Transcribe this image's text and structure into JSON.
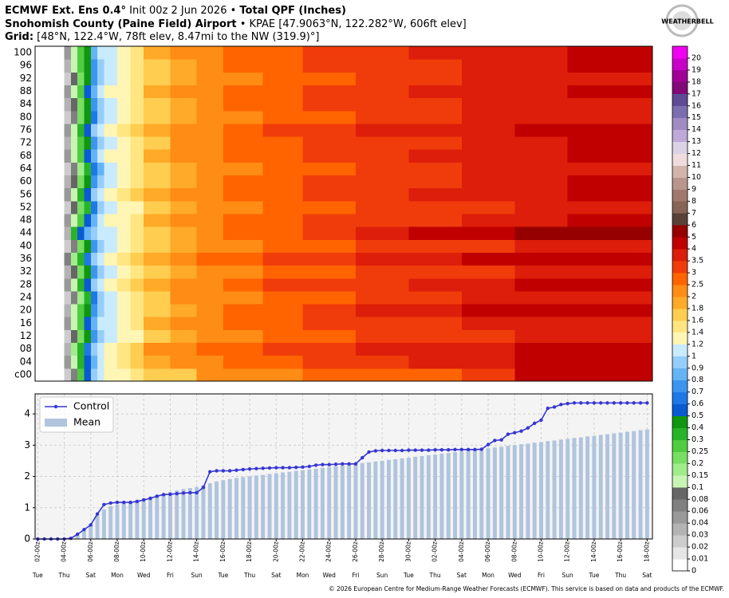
{
  "header": {
    "line1": [
      "ECMWF Ext. Ens 0.4°",
      " Init 00z 2 Jun 2026 • ",
      "Total QPF (Inches)"
    ],
    "line2": [
      "Snohomish County (Paine Field) Airport",
      " • KPAE [47.9063°N, 122.282°W, 606ft elev]"
    ],
    "line3": [
      "Grid:",
      " [48°N, 122.4°W, 78ft elev, 8.47mi to the NW (319.9)°]"
    ],
    "logo": "WEATHERBELL",
    "footer": "© 2026 European Centre for Medium-Range Weather Forecasts (ECMWF). This service is based on data and products of the ECMWF."
  },
  "chart_data": [
    {
      "type": "heatmap",
      "xlim": [
        -0.2,
        46.4
      ],
      "members": [
        "c00",
        "04",
        "08",
        "12",
        "16",
        "20",
        "24",
        "28",
        "32",
        "36",
        "40",
        "44",
        "48",
        "52",
        "56",
        "60",
        "64",
        "68",
        "72",
        "76",
        "80",
        "84",
        "88",
        "92",
        "96",
        "100"
      ],
      "x_edges": [
        0,
        2,
        2.5,
        3,
        3.5,
        4,
        4.5,
        5,
        6,
        7,
        8,
        10,
        12,
        14,
        17,
        20,
        24,
        28,
        32,
        36,
        40,
        46.4
      ],
      "values": [
        [
          0,
          0.02,
          0.06,
          0.25,
          0.5,
          0.9,
          1.15,
          1.2,
          1.3,
          1.45,
          1.6,
          1.75,
          2.2,
          2.3,
          2.4,
          2.8,
          2.9,
          2.9,
          3.3,
          4.2,
          4.4
        ],
        [
          0,
          0.04,
          0.1,
          0.3,
          0.55,
          0.85,
          1.05,
          1.25,
          1.4,
          1.6,
          1.9,
          2.1,
          2.3,
          2.6,
          2.9,
          3.2,
          3.4,
          3.6,
          3.8,
          4.1,
          4.3
        ],
        [
          0,
          0.03,
          0.15,
          0.35,
          0.6,
          0.95,
          1.1,
          1.3,
          1.5,
          1.7,
          2.05,
          2.3,
          2.6,
          2.8,
          3.05,
          3.3,
          3.5,
          3.7,
          3.9,
          4.2,
          4.5
        ],
        [
          0,
          0.02,
          0.08,
          0.2,
          0.4,
          0.7,
          0.95,
          1.1,
          1.2,
          1.35,
          1.6,
          1.8,
          2.1,
          2.4,
          2.7,
          2.9,
          3.1,
          3.2,
          3.4,
          3.6,
          3.8
        ],
        [
          0,
          0.05,
          0.12,
          0.28,
          0.5,
          0.8,
          1.0,
          1.15,
          1.3,
          1.5,
          1.8,
          2.0,
          2.3,
          2.5,
          2.7,
          3.0,
          3.2,
          3.4,
          3.5,
          3.7,
          3.9
        ],
        [
          0,
          0.03,
          0.1,
          0.25,
          0.45,
          0.75,
          0.9,
          1.05,
          1.2,
          1.4,
          1.7,
          1.9,
          2.2,
          2.6,
          2.9,
          3.3,
          3.6,
          3.8,
          4.1,
          4.4,
          4.7
        ],
        [
          0,
          0.02,
          0.06,
          0.18,
          0.35,
          0.65,
          0.9,
          1.1,
          1.25,
          1.45,
          1.75,
          2.0,
          2.2,
          2.45,
          2.7,
          2.95,
          3.1,
          3.3,
          3.5,
          3.6,
          3.8
        ],
        [
          0,
          0.04,
          0.12,
          0.3,
          0.55,
          0.9,
          1.1,
          1.3,
          1.45,
          1.6,
          1.85,
          2.05,
          2.35,
          2.7,
          3.0,
          3.2,
          3.45,
          3.6,
          3.8,
          4.0,
          4.2
        ],
        [
          0,
          0.03,
          0.09,
          0.22,
          0.42,
          0.7,
          0.95,
          1.1,
          1.25,
          1.4,
          1.6,
          1.8,
          2.0,
          2.3,
          2.55,
          2.8,
          3.0,
          3.2,
          3.3,
          3.5,
          3.6
        ],
        [
          0,
          0.06,
          0.15,
          0.32,
          0.6,
          0.95,
          1.15,
          1.3,
          1.5,
          1.7,
          1.95,
          2.2,
          2.5,
          2.8,
          3.1,
          3.4,
          3.6,
          3.9,
          4.1,
          4.3,
          4.5
        ],
        [
          0,
          0.02,
          0.07,
          0.2,
          0.4,
          0.7,
          0.95,
          1.1,
          1.3,
          1.5,
          1.7,
          1.9,
          2.15,
          2.4,
          2.6,
          2.85,
          3.05,
          3.2,
          3.4,
          3.55,
          3.7
        ],
        [
          0,
          0.03,
          0.35,
          0.5,
          0.8,
          0.95,
          1.05,
          1.15,
          1.3,
          1.45,
          1.7,
          1.9,
          2.2,
          2.5,
          2.8,
          3.3,
          3.7,
          4.2,
          4.6,
          5.2,
          5.6
        ],
        [
          0,
          0.04,
          0.1,
          0.28,
          0.5,
          0.85,
          1.05,
          1.2,
          1.35,
          1.55,
          1.8,
          2.05,
          2.3,
          2.55,
          2.8,
          3.05,
          3.25,
          3.45,
          3.6,
          3.8,
          4.0
        ],
        [
          0,
          0.02,
          0.08,
          0.2,
          0.38,
          0.65,
          0.9,
          1.05,
          1.2,
          1.35,
          1.6,
          1.85,
          2.1,
          2.35,
          2.6,
          2.8,
          3.0,
          3.2,
          3.4,
          3.6,
          3.7
        ],
        [
          0,
          0.05,
          0.13,
          0.3,
          0.55,
          0.9,
          1.1,
          1.25,
          1.4,
          1.6,
          1.9,
          2.1,
          2.4,
          2.7,
          2.95,
          3.2,
          3.4,
          3.6,
          3.8,
          3.9,
          4.1
        ],
        [
          0,
          0.03,
          0.09,
          0.24,
          0.45,
          0.75,
          0.95,
          1.15,
          1.3,
          1.5,
          1.75,
          1.95,
          2.2,
          2.5,
          2.75,
          3.0,
          3.2,
          3.4,
          3.6,
          3.8,
          4.0
        ],
        [
          0,
          0.02,
          0.06,
          0.18,
          0.36,
          0.62,
          0.88,
          1.05,
          1.2,
          1.4,
          1.65,
          1.9,
          2.2,
          2.45,
          2.7,
          2.95,
          3.15,
          3.3,
          3.5,
          3.7,
          3.9
        ],
        [
          0,
          0.04,
          0.11,
          0.27,
          0.5,
          0.8,
          1.0,
          1.2,
          1.35,
          1.55,
          1.8,
          2.0,
          2.3,
          2.6,
          2.85,
          3.1,
          3.3,
          3.5,
          3.7,
          3.9,
          4.1
        ],
        [
          0,
          0.03,
          0.1,
          0.25,
          0.48,
          0.78,
          0.98,
          1.15,
          1.3,
          1.5,
          1.75,
          2.0,
          2.25,
          2.5,
          2.8,
          3.05,
          3.25,
          3.45,
          3.65,
          3.85,
          4.0
        ],
        [
          0,
          0.05,
          0.14,
          0.32,
          0.58,
          0.92,
          1.12,
          1.28,
          1.45,
          1.65,
          1.9,
          2.15,
          2.45,
          2.75,
          3.0,
          3.25,
          3.5,
          3.7,
          3.9,
          4.1,
          4.3
        ],
        [
          0,
          0.02,
          0.07,
          0.2,
          0.4,
          0.68,
          0.92,
          1.08,
          1.22,
          1.42,
          1.68,
          1.9,
          2.15,
          2.4,
          2.65,
          2.9,
          3.1,
          3.3,
          3.5,
          3.7,
          3.85
        ],
        [
          0,
          0.03,
          0.09,
          0.23,
          0.44,
          0.74,
          0.96,
          1.12,
          1.28,
          1.48,
          1.72,
          1.95,
          2.2,
          2.5,
          2.75,
          3.0,
          3.2,
          3.4,
          3.6,
          3.75,
          3.95
        ],
        [
          0,
          0.04,
          0.12,
          0.29,
          0.52,
          0.84,
          1.04,
          1.2,
          1.36,
          1.56,
          1.82,
          2.06,
          2.34,
          2.64,
          2.9,
          3.15,
          3.35,
          3.55,
          3.75,
          3.95,
          4.1
        ],
        [
          0,
          0.02,
          0.08,
          0.21,
          0.41,
          0.7,
          0.93,
          1.1,
          1.25,
          1.45,
          1.7,
          1.92,
          2.18,
          2.44,
          2.7,
          2.95,
          3.15,
          3.35,
          3.55,
          3.75,
          3.9
        ],
        [
          0,
          0.03,
          0.1,
          0.26,
          0.47,
          0.77,
          0.97,
          1.14,
          1.3,
          1.5,
          1.76,
          1.98,
          2.25,
          2.55,
          2.8,
          3.05,
          3.25,
          3.45,
          3.65,
          3.85,
          4.05
        ],
        [
          0,
          0.04,
          0.11,
          0.27,
          0.49,
          0.8,
          1.0,
          1.18,
          1.34,
          1.54,
          1.8,
          2.02,
          2.3,
          2.6,
          2.85,
          3.1,
          3.3,
          3.5,
          3.7,
          3.9,
          4.1
        ]
      ],
      "colorbar": {
        "levels": [
          0,
          0.01,
          0.02,
          0.03,
          0.04,
          0.06,
          0.08,
          0.1,
          0.15,
          0.2,
          0.25,
          0.3,
          0.4,
          0.5,
          0.6,
          0.7,
          0.8,
          0.9,
          1,
          1.2,
          1.4,
          1.6,
          1.8,
          2,
          2.5,
          3,
          3.5,
          4,
          5,
          6,
          7,
          8,
          9,
          10,
          11,
          12,
          13,
          14,
          15,
          16,
          17,
          18,
          19,
          20
        ],
        "colors": [
          "#ffffff",
          "#e6e6e6",
          "#cccccc",
          "#b3b3b3",
          "#999999",
          "#808080",
          "#666666",
          "#c8f5b4",
          "#a0ec8c",
          "#78de64",
          "#50cc40",
          "#28b428",
          "#109610",
          "#0a5ad2",
          "#1e78e6",
          "#3c96f0",
          "#64b4f5",
          "#96cdfa",
          "#c8ebff",
          "#fff5b4",
          "#ffe682",
          "#ffcd50",
          "#ffaa28",
          "#ff8c14",
          "#ff6400",
          "#f03c0a",
          "#dc1e0a",
          "#c00000",
          "#960000",
          "#5a4137",
          "#876455",
          "#a0786e",
          "#b9968c",
          "#d2b4aa",
          "#f0dcdc",
          "#dcd2e6",
          "#bea9d7",
          "#a08cc3",
          "#7d6eaf",
          "#5f4b96",
          "#820a78",
          "#a00096",
          "#c800c8",
          "#f000f0"
        ]
      }
    },
    {
      "type": "combo",
      "xlim": [
        -0.2,
        46.4
      ],
      "ylim": [
        0,
        4.64
      ],
      "yticks": [
        0,
        1,
        2,
        3,
        4
      ],
      "grid": true,
      "legend": "upper left",
      "xticks": [
        {
          "value": 0,
          "label": "02-00z"
        },
        {
          "value": 2,
          "label": "04-00z"
        },
        {
          "value": 4,
          "label": "06-00z"
        },
        {
          "value": 6,
          "label": "08-00z"
        },
        {
          "value": 8,
          "label": "10-00z"
        },
        {
          "value": 10,
          "label": "12-00z"
        },
        {
          "value": 12,
          "label": "14-00z"
        },
        {
          "value": 14,
          "label": "16-00z"
        },
        {
          "value": 16,
          "label": "18-00z"
        },
        {
          "value": 18,
          "label": "20-00z"
        },
        {
          "value": 20,
          "label": "22-00z"
        },
        {
          "value": 22,
          "label": "24-00z"
        },
        {
          "value": 24,
          "label": "26-00z"
        },
        {
          "value": 26,
          "label": "28-00z"
        },
        {
          "value": 28,
          "label": "30-00z"
        },
        {
          "value": 30,
          "label": "02-00z"
        },
        {
          "value": 32,
          "label": "04-00z"
        },
        {
          "value": 34,
          "label": "06-00z"
        },
        {
          "value": 36,
          "label": "08-00z"
        },
        {
          "value": 38,
          "label": "10-00z"
        },
        {
          "value": 40,
          "label": "12-00z"
        },
        {
          "value": 42,
          "label": "14-00z"
        },
        {
          "value": 44,
          "label": "16-00z"
        },
        {
          "value": 46,
          "label": "18-00z"
        }
      ],
      "weekdays": [
        "Tue",
        "Thu",
        "Sat",
        "Mon",
        "Wed",
        "Fri",
        "Sun",
        "Tue",
        "Thu",
        "Sat",
        "Mon",
        "Wed",
        "Fri",
        "Sun",
        "Tue",
        "Thu",
        "Sat",
        "Mon",
        "Wed",
        "Fri",
        "Sun",
        "Tue",
        "Thu",
        "Sat"
      ],
      "x": [
        0,
        0.5,
        1,
        1.5,
        2,
        2.5,
        3,
        3.5,
        4,
        4.5,
        5,
        5.5,
        6,
        6.5,
        7,
        7.5,
        8,
        8.5,
        9,
        9.5,
        10,
        10.5,
        11,
        11.5,
        12,
        12.5,
        13,
        13.5,
        14,
        14.5,
        15,
        15.5,
        16,
        16.5,
        17,
        17.5,
        18,
        18.5,
        19,
        19.5,
        20,
        20.5,
        21,
        21.5,
        22,
        22.5,
        23,
        23.5,
        24,
        24.5,
        25,
        25.5,
        26,
        26.5,
        27,
        27.5,
        28,
        28.5,
        29,
        29.5,
        30,
        30.5,
        31,
        31.5,
        32,
        32.5,
        33,
        33.5,
        34,
        34.5,
        35,
        35.5,
        36,
        36.5,
        37,
        37.5,
        38,
        38.5,
        39,
        39.5,
        40,
        40.5,
        41,
        41.5,
        42,
        42.5,
        43,
        43.5,
        44,
        44.5,
        45,
        45.5,
        46
      ],
      "series": [
        {
          "name": "Mean",
          "kind": "bar",
          "color": "#b0c4de",
          "values": [
            0,
            0,
            0,
            0,
            0,
            0.02,
            0.1,
            0.25,
            0.45,
            0.75,
            0.95,
            1.05,
            1.1,
            1.15,
            1.2,
            1.25,
            1.3,
            1.35,
            1.4,
            1.45,
            1.5,
            1.55,
            1.6,
            1.63,
            1.66,
            1.72,
            1.78,
            1.84,
            1.88,
            1.92,
            1.95,
            1.98,
            2.0,
            2.03,
            2.05,
            2.08,
            2.1,
            2.13,
            2.15,
            2.18,
            2.2,
            2.23,
            2.25,
            2.28,
            2.3,
            2.33,
            2.35,
            2.38,
            2.4,
            2.43,
            2.45,
            2.48,
            2.5,
            2.53,
            2.55,
            2.58,
            2.6,
            2.63,
            2.65,
            2.68,
            2.7,
            2.73,
            2.75,
            2.78,
            2.8,
            2.83,
            2.85,
            2.88,
            2.9,
            2.93,
            2.95,
            2.98,
            3.0,
            3.03,
            3.05,
            3.08,
            3.1,
            3.13,
            3.15,
            3.18,
            3.2,
            3.23,
            3.25,
            3.28,
            3.3,
            3.33,
            3.35,
            3.38,
            3.4,
            3.43,
            3.45,
            3.48,
            3.5
          ]
        },
        {
          "name": "Control",
          "kind": "line",
          "color": "#3636d2",
          "values": [
            0,
            0,
            0,
            0,
            0,
            0.02,
            0.15,
            0.3,
            0.45,
            0.8,
            1.1,
            1.15,
            1.17,
            1.17,
            1.17,
            1.2,
            1.25,
            1.3,
            1.37,
            1.42,
            1.43,
            1.45,
            1.47,
            1.48,
            1.48,
            1.65,
            2.15,
            2.18,
            2.18,
            2.18,
            2.2,
            2.22,
            2.24,
            2.25,
            2.26,
            2.27,
            2.28,
            2.28,
            2.28,
            2.29,
            2.3,
            2.32,
            2.36,
            2.38,
            2.38,
            2.39,
            2.4,
            2.4,
            2.4,
            2.6,
            2.78,
            2.82,
            2.83,
            2.83,
            2.83,
            2.83,
            2.84,
            2.84,
            2.84,
            2.84,
            2.85,
            2.85,
            2.85,
            2.86,
            2.86,
            2.86,
            2.86,
            2.87,
            3.02,
            3.15,
            3.17,
            3.35,
            3.4,
            3.45,
            3.55,
            3.7,
            3.8,
            4.18,
            4.22,
            4.3,
            4.33,
            4.35,
            4.35,
            4.35,
            4.35,
            4.35,
            4.35,
            4.35,
            4.35,
            4.35,
            4.35,
            4.35,
            4.35
          ]
        }
      ]
    }
  ]
}
